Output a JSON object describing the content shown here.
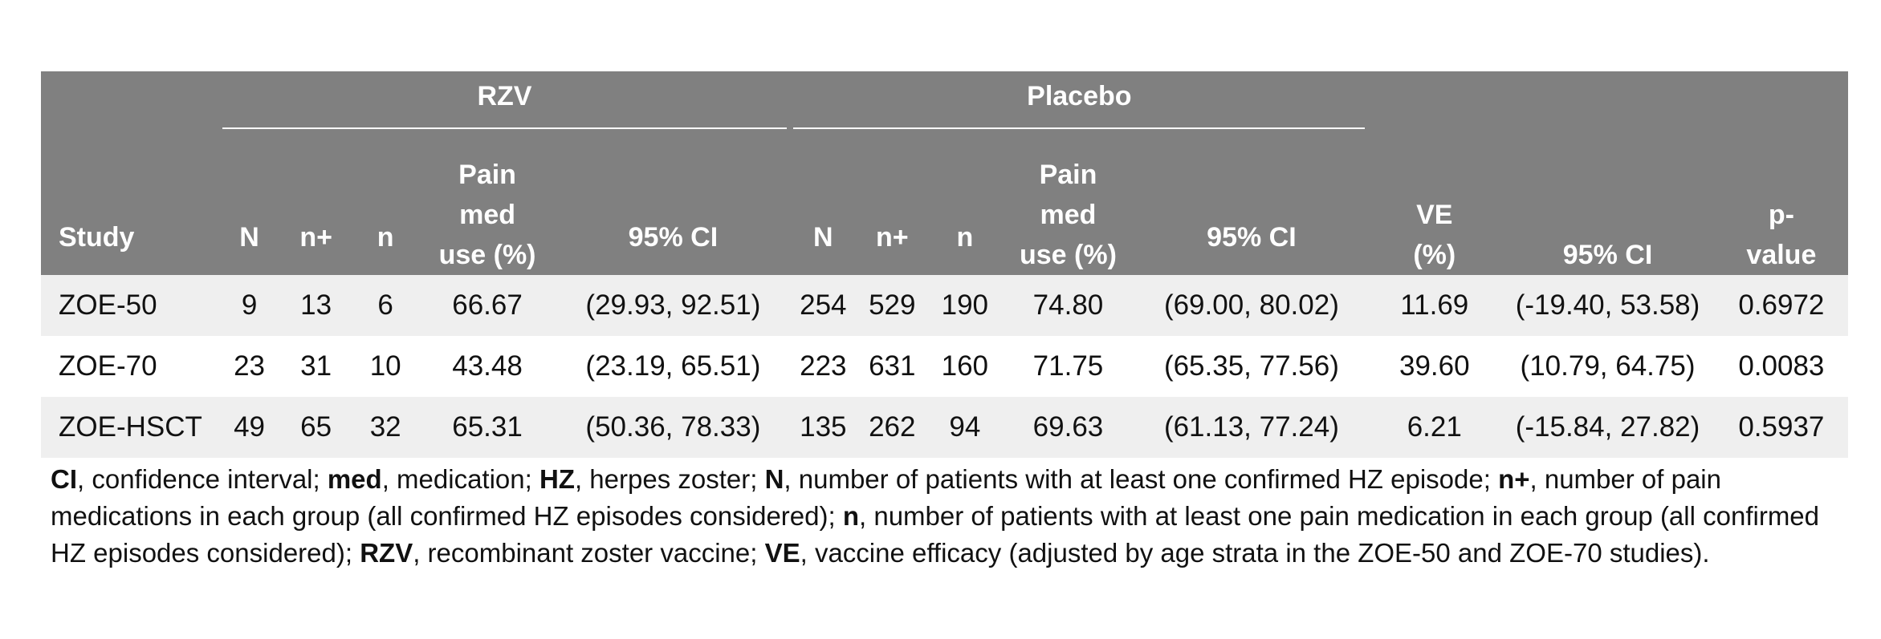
{
  "table": {
    "groups": {
      "rzv": "RZV",
      "placebo": "Placebo"
    },
    "headers": {
      "study": "Study",
      "rzv_N": "N",
      "rzv_nplus": "n+",
      "rzv_n": "n",
      "rzv_pain_line1": "Pain",
      "rzv_pain_line2": "med",
      "rzv_pain_line3": "use (%)",
      "rzv_ci": "95% CI",
      "pl_N": "N",
      "pl_nplus": "n+",
      "pl_n": "n",
      "pl_pain_line1": "Pain",
      "pl_pain_line2": "med",
      "pl_pain_line3": "use (%)",
      "pl_ci": "95% CI",
      "ve_line1": "VE",
      "ve_line2": "(%)",
      "ve_ci": "95% CI",
      "p_line1": "p-",
      "p_line2": "value"
    },
    "rows": [
      {
        "study": "ZOE-50",
        "rzv_N": "9",
        "rzv_nplus": "13",
        "rzv_n": "6",
        "rzv_pain": "66.67",
        "rzv_ci": "(29.93, 92.51)",
        "pl_N": "254",
        "pl_nplus": "529",
        "pl_n": "190",
        "pl_pain": "74.80",
        "pl_ci": "(69.00, 80.02)",
        "ve": "11.69",
        "ve_ci": "(-19.40, 53.58)",
        "p": "0.6972"
      },
      {
        "study": "ZOE-70",
        "rzv_N": "23",
        "rzv_nplus": "31",
        "rzv_n": "10",
        "rzv_pain": "43.48",
        "rzv_ci": "(23.19, 65.51)",
        "pl_N": "223",
        "pl_nplus": "631",
        "pl_n": "160",
        "pl_pain": "71.75",
        "pl_ci": "(65.35, 77.56)",
        "ve": "39.60",
        "ve_ci": "(10.79, 64.75)",
        "p": "0.0083"
      },
      {
        "study": "ZOE-HSCT",
        "rzv_N": "49",
        "rzv_nplus": "65",
        "rzv_n": "32",
        "rzv_pain": "65.31",
        "rzv_ci": "(50.36, 78.33)",
        "pl_N": "135",
        "pl_nplus": "262",
        "pl_n": "94",
        "pl_pain": "69.63",
        "pl_ci": "(61.13, 77.24)",
        "ve": "6.21",
        "ve_ci": "(-15.84, 27.82)",
        "p": "0.5937"
      }
    ]
  },
  "legend": {
    "ci_abbr": "CI",
    "ci_def": ", confidence interval; ",
    "med_abbr": "med",
    "med_def": ", medication; ",
    "hz_abbr": "HZ",
    "hz_def": ", herpes zoster; ",
    "N_abbr": "N",
    "N_def": ", number of patients with at least one confirmed HZ episode; ",
    "nplus_abbr": "n+",
    "nplus_def": ", number of pain medications in each group (all confirmed HZ episodes considered); ",
    "n_abbr": "n",
    "n_def": ", number of patients with at least one pain medication in each group (all confirmed HZ episodes considered); ",
    "rzv_abbr": "RZV",
    "rzv_def": ", recombinant zoster vaccine; ",
    "ve_abbr": "VE",
    "ve_def": ", vaccine efficacy (adjusted by age strata in the ZOE-50 and ZOE-70 studies)."
  }
}
